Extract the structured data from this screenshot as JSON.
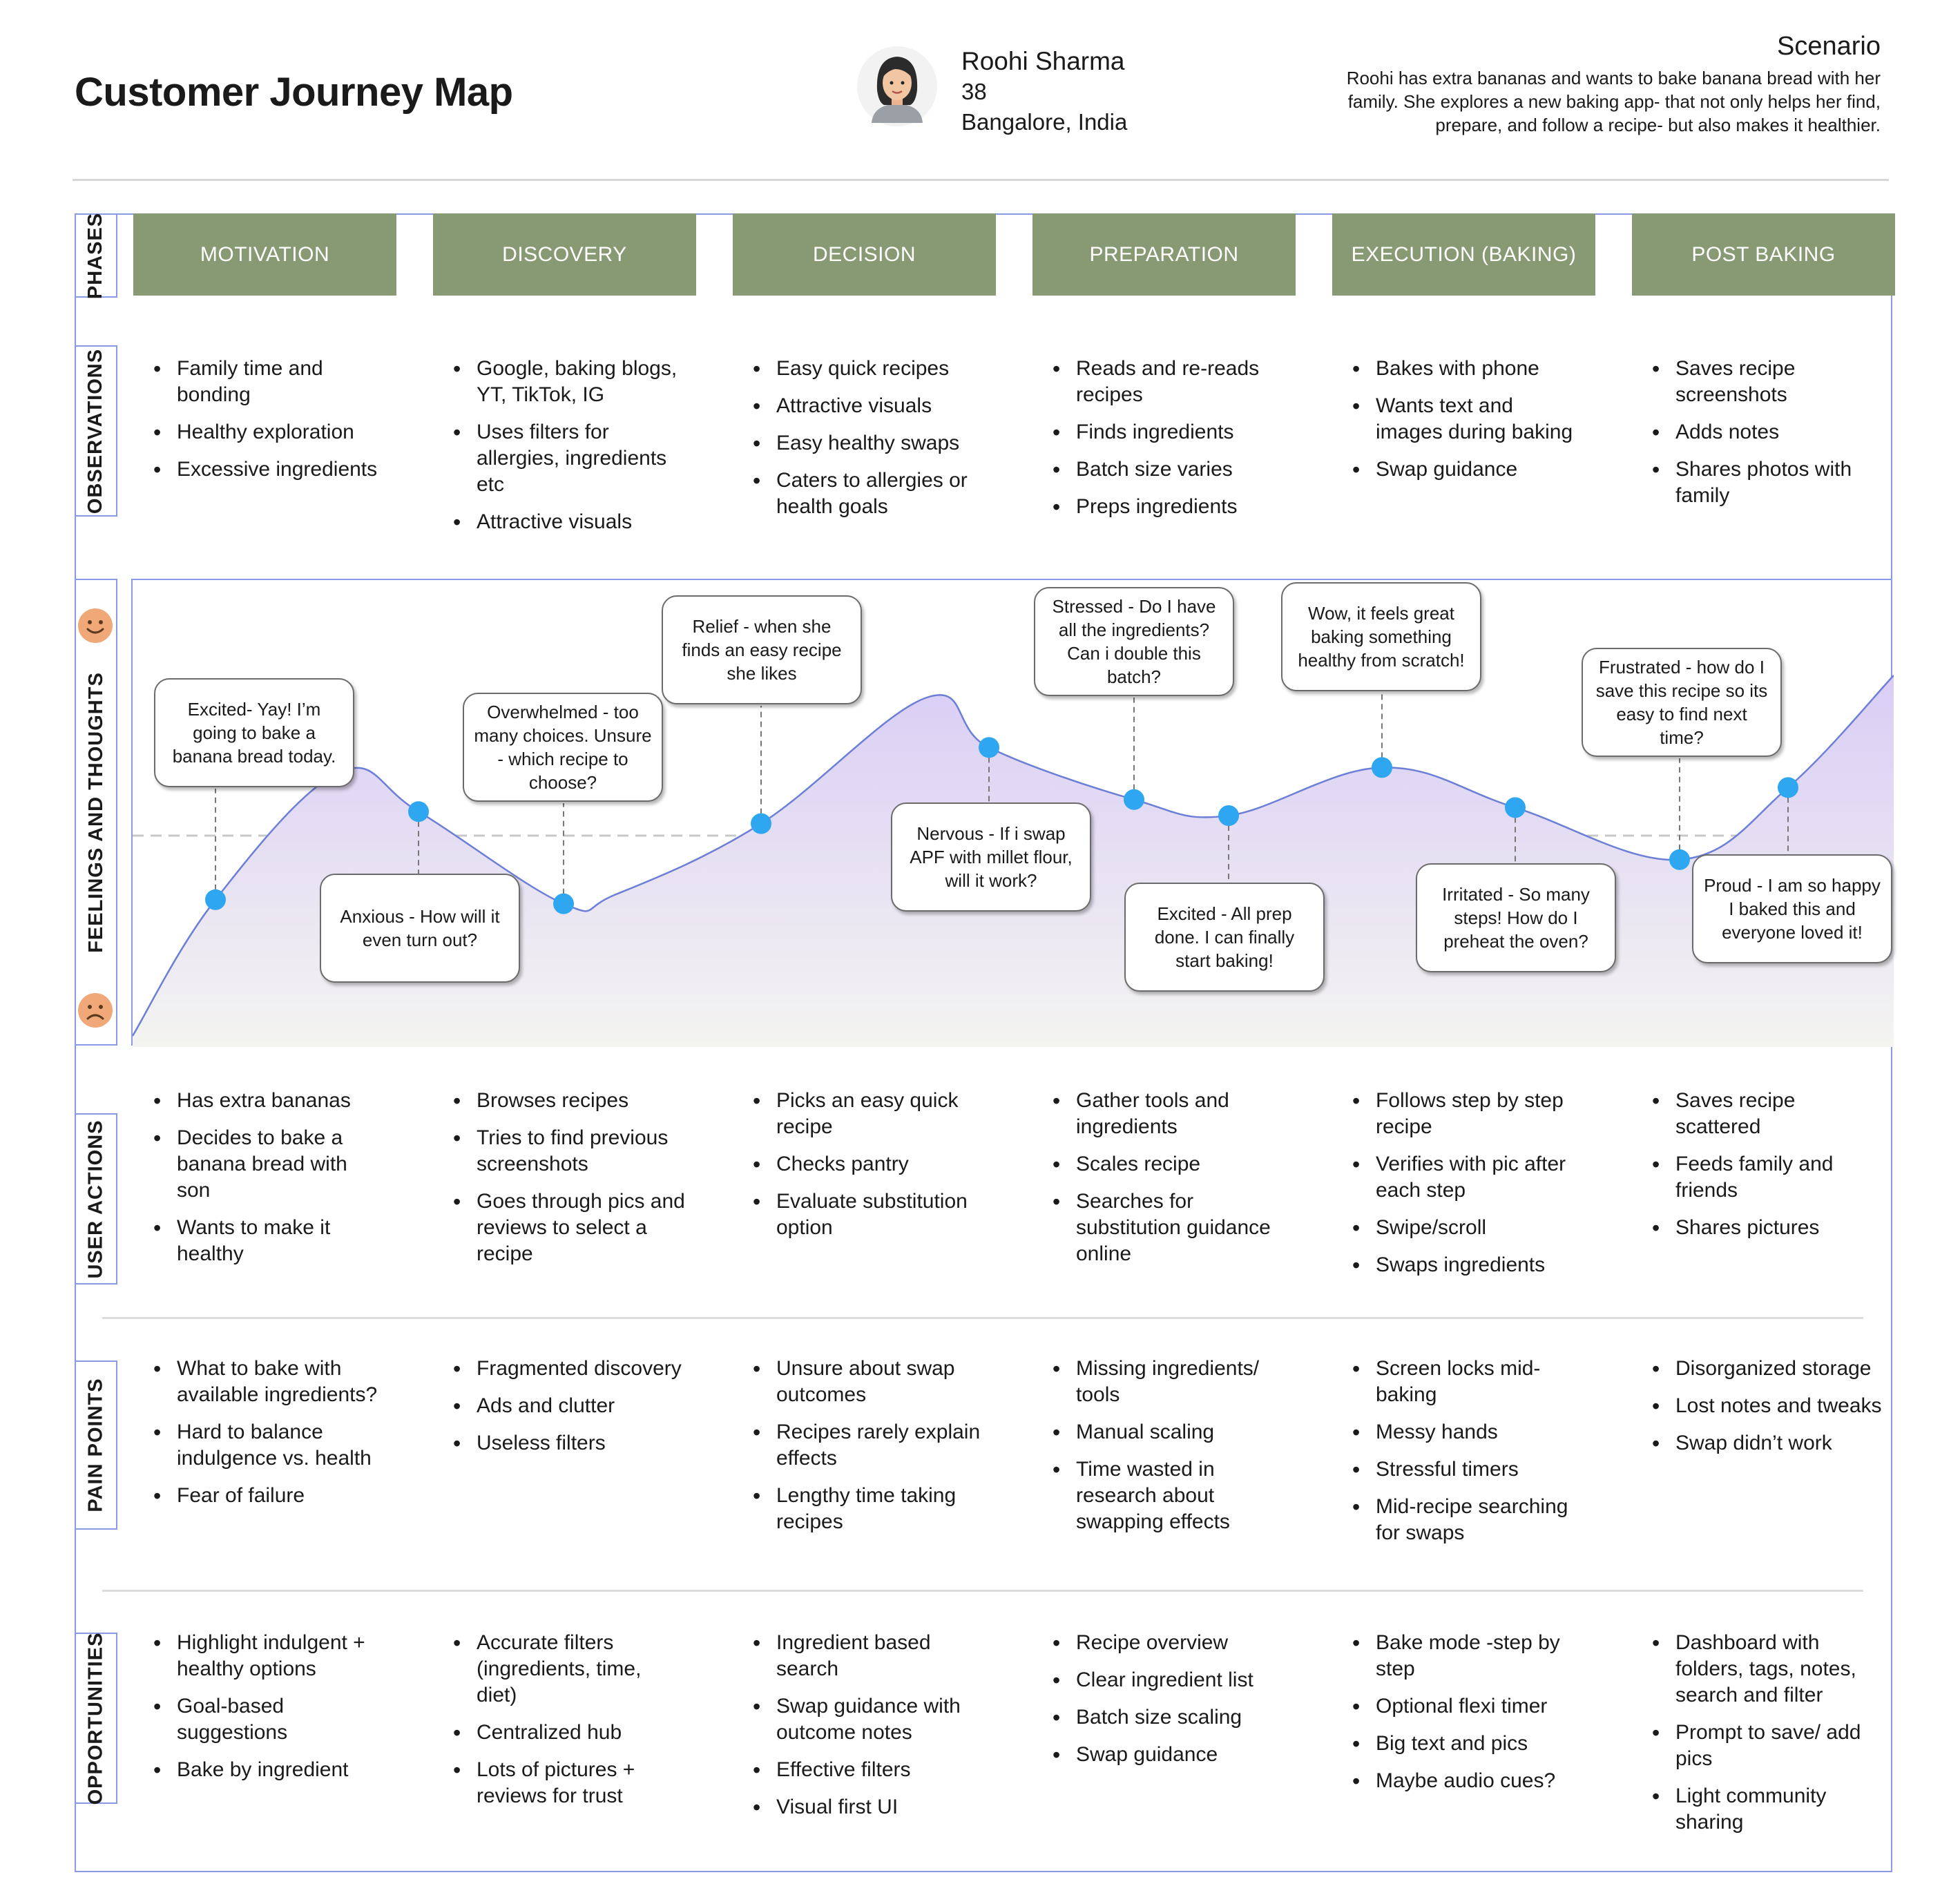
{
  "header": {
    "title": "Customer Journey Map",
    "persona": {
      "name": "Roohi Sharma",
      "age": "38",
      "location": "Bangalore, India"
    },
    "scenario": {
      "title": "Scenario",
      "text": "Roohi has extra bananas and wants to bake banana bread with her family. She explores a new baking app- that not only helps her find, prepare, and follow a recipe- but also makes it healthier."
    }
  },
  "row_labels": {
    "phases": "PHASES",
    "observations": "OBSERVATIONS",
    "feelings": "FEELINGS AND THOUGHTS",
    "user_actions": "USER ACTIONS",
    "pain_points": "PAIN POINTS",
    "opportunities": "OPPORTUNITIES"
  },
  "phases": [
    "MOTIVATION",
    "DISCOVERY",
    "DECISION",
    "PREPARATION",
    "EXECUTION (BAKING)",
    "POST BAKING"
  ],
  "observations": [
    [
      "Family time and bonding",
      "Healthy exploration",
      "Excessive ingredients"
    ],
    [
      "Google, baking blogs, YT, TikTok, IG",
      "Uses filters for allergies, ingredients etc",
      "Attractive visuals"
    ],
    [
      "Easy quick recipes",
      "Attractive visuals",
      "Easy healthy swaps",
      "Caters to allergies or health goals"
    ],
    [
      "Reads and re-reads recipes",
      "Finds ingredients",
      "Batch size varies",
      "Preps ingredients"
    ],
    [
      "Bakes with phone",
      "Wants text and images during baking",
      "Swap guidance"
    ],
    [
      "Saves recipe screenshots",
      "Adds notes",
      "Shares photos with family"
    ]
  ],
  "user_actions": [
    [
      "Has extra bananas",
      "Decides to bake a banana bread with son",
      "Wants to make it healthy"
    ],
    [
      "Browses recipes",
      "Tries to find previous screenshots",
      "Goes through pics and reviews to select a recipe"
    ],
    [
      "Picks an easy quick recipe",
      "Checks pantry",
      "Evaluate substitution option"
    ],
    [
      "Gather tools and ingredients",
      "Scales recipe",
      "Searches for substitution guidance online"
    ],
    [
      "Follows step by step recipe",
      "Verifies with pic after each step",
      "Swipe/scroll",
      "Swaps ingredients"
    ],
    [
      "Saves recipe scattered",
      "Feeds family and friends",
      "Shares pictures"
    ]
  ],
  "pain_points": [
    [
      "What to bake with available ingredients?",
      "Hard to balance indulgence vs. health",
      "Fear of failure"
    ],
    [
      "Fragmented discovery",
      "Ads and clutter",
      "Useless filters"
    ],
    [
      "Unsure about swap outcomes",
      "Recipes rarely explain effects",
      "Lengthy time taking recipes"
    ],
    [
      "Missing ingredients/ tools",
      "Manual scaling",
      "Time wasted in research about swapping effects"
    ],
    [
      "Screen locks mid-baking",
      "Messy hands",
      "Stressful timers",
      "Mid-recipe searching for swaps"
    ],
    [
      "Disorganized storage",
      "Lost notes and tweaks",
      "Swap didn’t work"
    ]
  ],
  "opportunities": [
    [
      "Highlight indulgent + healthy options",
      "Goal-based suggestions",
      "Bake by ingredient"
    ],
    [
      "Accurate filters (ingredients, time, diet)",
      "Centralized hub",
      "Lots of pictures + reviews for trust"
    ],
    [
      "Ingredient based search",
      "Swap guidance with outcome notes",
      "Effective filters",
      "Visual first UI"
    ],
    [
      "Recipe overview",
      "Clear ingredient list",
      "Batch size scaling",
      "Swap guidance"
    ],
    [
      "Bake mode -step by step",
      "Optional flexi timer",
      "Big text and pics",
      "Maybe audio cues?"
    ],
    [
      "Dashboard with folders, tags, notes, search and filter",
      "Prompt to save/ add pics",
      "Light community sharing"
    ]
  ],
  "emotion_curve": {
    "scale": "0 = very negative, 1 = very positive, 0.5 = neutral",
    "neutral_level": 0.5,
    "points": [
      {
        "phase": "MOTIVATION",
        "text": "Excited- Yay! I’m going to bake a banana bread today.",
        "level": 0.34
      },
      {
        "phase": "MOTIVATION",
        "text": "Anxious - How will it even turn out?",
        "level": 0.56
      },
      {
        "phase": "DISCOVERY",
        "text": "Overwhelmed - too many choices. Unsure - which recipe to choose?",
        "level": 0.33
      },
      {
        "phase": "DECISION",
        "text": "Relief - when she finds an easy recipe she likes",
        "level": 0.53
      },
      {
        "phase": "DECISION",
        "text": "Nervous - If i swap APF with millet flour, will it work?",
        "level": 0.72
      },
      {
        "phase": "PREPARATION",
        "text": "Stressed - Do I have all the ingredients? Can i double this batch?",
        "level": 0.59
      },
      {
        "phase": "PREPARATION",
        "text": "Excited - All prep done. I can finally start baking!",
        "level": 0.55
      },
      {
        "phase": "EXECUTION (BAKING)",
        "text": "Wow, it feels great baking something healthy from scratch!",
        "level": 0.67
      },
      {
        "phase": "EXECUTION (BAKING)",
        "text": "Irritated - So many steps! How do I preheat the oven?",
        "level": 0.57
      },
      {
        "phase": "POST BAKING",
        "text": "Frustrated - how do I save this recipe so its easy to find next time?",
        "level": 0.44
      },
      {
        "phase": "POST BAKING",
        "text": "Proud - I am so happy I baked this and everyone loved it!",
        "level": 0.62
      }
    ],
    "curve_start_level": 0.0,
    "curve_end_level": 0.9,
    "colors": {
      "fill_top": "#d9cdf5",
      "fill_bottom": "#f4f4f1",
      "line": "#6b7fd6",
      "dot": "#2ea7f0",
      "neutral_line": "#c8c8c8"
    }
  },
  "icons": {
    "happy": "happy-face-icon",
    "sad": "sad-face-icon"
  },
  "colors": {
    "phase_bg": "#889a73",
    "border": "#8a9ae6",
    "separator": "#dcdcdc",
    "face": "#f0a878"
  }
}
